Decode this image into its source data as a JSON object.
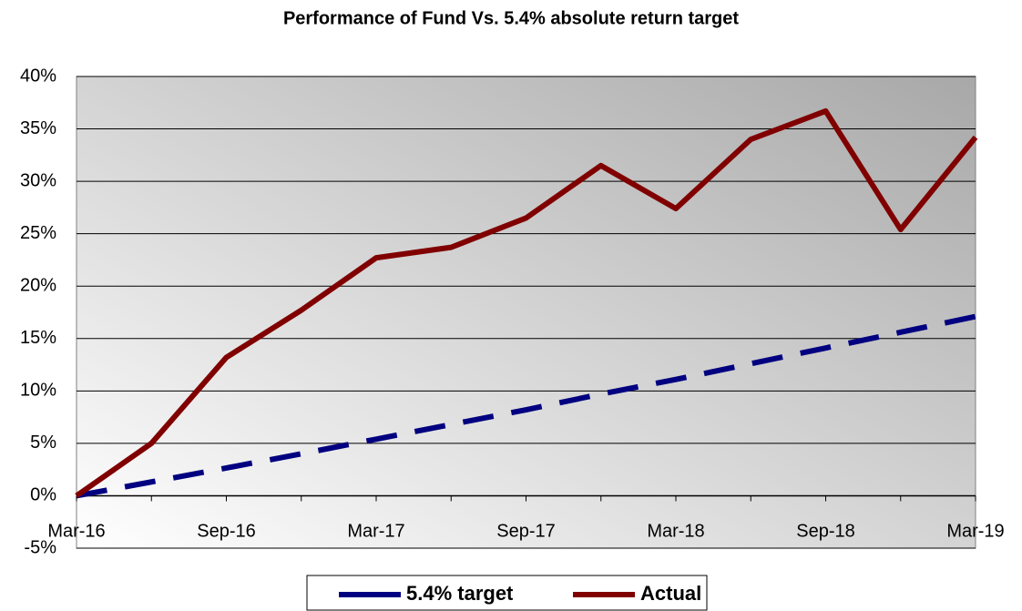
{
  "chart_data": {
    "type": "line",
    "title": "Performance of Fund Vs. 5.4% absolute return target",
    "categories": [
      "Mar-16",
      null,
      "Sep-16",
      null,
      "Mar-17",
      null,
      "Sep-17",
      null,
      "Mar-18",
      null,
      "Sep-18",
      null,
      "Mar-19"
    ],
    "series": [
      {
        "name": "5.4% target",
        "color": "#000080",
        "style": "dashed",
        "values": [
          0,
          1.32,
          2.65,
          4.0,
          5.4,
          6.8,
          8.2,
          9.7,
          11.1,
          12.6,
          14.1,
          15.6,
          17.1
        ]
      },
      {
        "name": "Actual",
        "color": "#800000",
        "style": "solid",
        "values": [
          0,
          5.0,
          13.2,
          17.7,
          22.7,
          23.7,
          26.5,
          31.5,
          27.4,
          34.0,
          36.7,
          25.4,
          34.2
        ]
      }
    ],
    "ylim": [
      -5,
      40
    ],
    "yticks": [
      {
        "value": -5,
        "label": "-5%"
      },
      {
        "value": 0,
        "label": "0%"
      },
      {
        "value": 5,
        "label": "5%"
      },
      {
        "value": 10,
        "label": "10%"
      },
      {
        "value": 15,
        "label": "15%"
      },
      {
        "value": 20,
        "label": "20%"
      },
      {
        "value": 25,
        "label": "25%"
      },
      {
        "value": 30,
        "label": "30%"
      },
      {
        "value": 35,
        "label": "35%"
      },
      {
        "value": 40,
        "label": "40%"
      }
    ],
    "grid": true,
    "legend": "bottom"
  }
}
